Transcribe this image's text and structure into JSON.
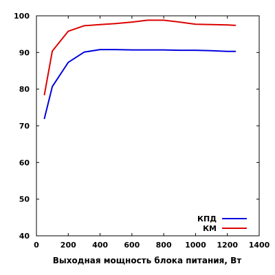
{
  "chart_data": {
    "type": "line",
    "title": "",
    "xlabel": "Выходная мощность блока питания, Вт",
    "ylabel": "",
    "xlim": [
      0,
      1400
    ],
    "ylim": [
      40,
      100
    ],
    "xticks": [
      0,
      200,
      400,
      600,
      800,
      1000,
      1200,
      1400
    ],
    "yticks": [
      40,
      50,
      60,
      70,
      80,
      90,
      100
    ],
    "grid": false,
    "legend": "bottom-right",
    "series": [
      {
        "name": "КПД",
        "color": "#0000dd",
        "x": [
          50,
          100,
          200,
          300,
          400,
          500,
          600,
          700,
          800,
          900,
          1000,
          1100,
          1200,
          1250
        ],
        "y": [
          72.0,
          80.7,
          87.3,
          90.1,
          90.8,
          90.8,
          90.7,
          90.7,
          90.7,
          90.6,
          90.6,
          90.5,
          90.3,
          90.3
        ]
      },
      {
        "name": "КМ",
        "color": "#dd0000",
        "x": [
          50,
          100,
          200,
          300,
          400,
          500,
          600,
          700,
          800,
          900,
          1000,
          1100,
          1200,
          1250
        ],
        "y": [
          78.5,
          90.4,
          95.8,
          97.3,
          97.6,
          97.9,
          98.3,
          98.8,
          98.8,
          98.3,
          97.7,
          97.6,
          97.5,
          97.4
        ]
      }
    ]
  }
}
